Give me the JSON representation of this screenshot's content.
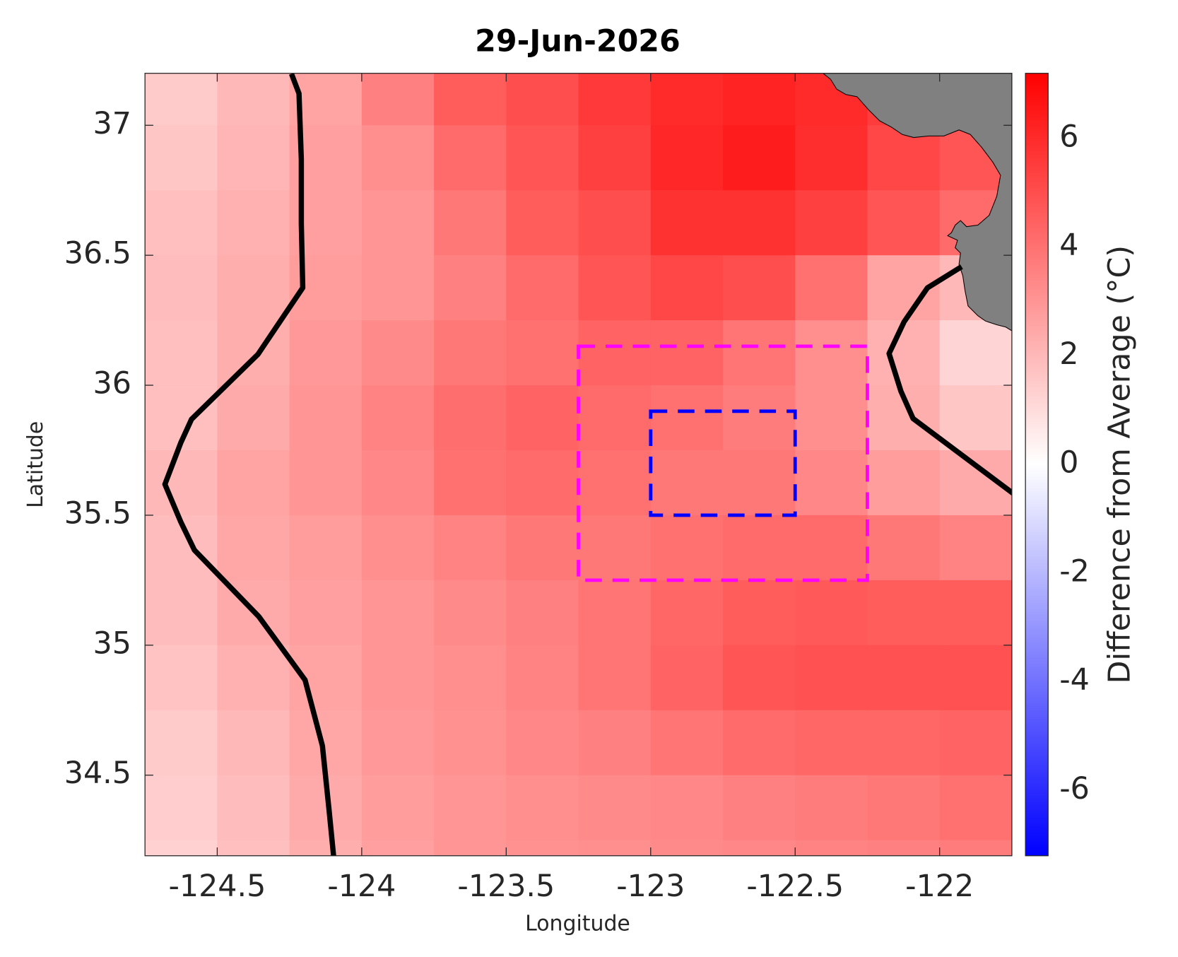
{
  "chart_data": {
    "type": "heatmap",
    "title": "29-Jun-2026",
    "x_label": "Longitude",
    "y_label": "Latitude",
    "xlim": [
      -124.75,
      -121.75
    ],
    "ylim": [
      34.19,
      37.2
    ],
    "xticks": [
      -124.5,
      -124,
      -123.5,
      -123,
      -122.5,
      -122
    ],
    "yticks": [
      34.5,
      35,
      35.5,
      36,
      36.5,
      37
    ],
    "x": [
      -124.625,
      -124.375,
      -124.125,
      -123.875,
      -123.625,
      -123.375,
      -123.125,
      -122.875,
      -122.625,
      -122.375,
      -122.125,
      -121.875
    ],
    "y": [
      37.125,
      36.875,
      36.625,
      36.375,
      36.125,
      35.875,
      35.625,
      35.375,
      35.125,
      34.875,
      34.625,
      34.375,
      34.125
    ],
    "values": [
      [
        1.5,
        2.0,
        2.6,
        3.6,
        4.6,
        5.0,
        5.6,
        6.0,
        6.2,
        6.0,
        5.5,
        5.0
      ],
      [
        1.6,
        2.1,
        2.7,
        3.2,
        4.2,
        4.8,
        5.4,
        6.1,
        6.4,
        5.9,
        5.2,
        4.8
      ],
      [
        1.8,
        2.2,
        2.7,
        3.0,
        3.8,
        4.6,
        5.0,
        5.8,
        5.8,
        5.4,
        4.8,
        4.2
      ],
      [
        1.9,
        2.3,
        2.8,
        3.0,
        3.6,
        4.2,
        4.8,
        5.2,
        5.0,
        4.0,
        2.6,
        2.0
      ],
      [
        1.8,
        2.3,
        2.9,
        3.3,
        3.8,
        4.0,
        4.4,
        4.4,
        3.9,
        3.2,
        2.2,
        1.2
      ],
      [
        1.8,
        2.4,
        3.0,
        3.5,
        4.1,
        4.4,
        4.2,
        4.0,
        3.7,
        3.2,
        2.3,
        1.6
      ],
      [
        2.0,
        2.6,
        3.0,
        3.4,
        4.0,
        4.2,
        4.0,
        3.8,
        3.8,
        3.4,
        2.8,
        2.4
      ],
      [
        1.9,
        2.5,
        2.8,
        3.2,
        3.5,
        3.8,
        3.8,
        4.0,
        4.2,
        4.2,
        3.8,
        3.5
      ],
      [
        1.9,
        2.4,
        2.7,
        3.0,
        3.3,
        3.6,
        3.9,
        4.3,
        4.6,
        4.7,
        4.6,
        4.6
      ],
      [
        1.7,
        2.2,
        2.6,
        3.0,
        3.2,
        3.5,
        3.9,
        4.4,
        4.8,
        4.9,
        4.9,
        4.9
      ],
      [
        1.5,
        2.0,
        2.5,
        2.9,
        3.1,
        3.4,
        3.6,
        3.9,
        4.2,
        4.3,
        4.3,
        4.4
      ],
      [
        1.4,
        1.9,
        2.4,
        2.8,
        3.0,
        3.2,
        3.3,
        3.4,
        3.6,
        3.7,
        3.8,
        4.0
      ],
      [
        1.3,
        1.8,
        2.3,
        2.7,
        3.0,
        3.1,
        3.2,
        3.3,
        3.4,
        3.5,
        3.6,
        3.7
      ]
    ],
    "colormap": [
      "#0000ff",
      "#ffffff",
      "#ff0000"
    ],
    "colorbar": {
      "label": "Difference from Average (°C)",
      "clim": [
        -7.2,
        7.2
      ],
      "ticks": [
        -6,
        -4,
        -2,
        0,
        2,
        4,
        6
      ]
    },
    "contours": [
      {
        "color": "#000000",
        "x": [
          -124.243,
          -124.217,
          -124.209,
          -124.209,
          -124.204,
          -124.359,
          -124.589,
          -124.626,
          -124.681,
          -124.626,
          -124.579,
          -124.356,
          -124.196,
          -124.136,
          -124.113,
          -124.097
        ],
        "y": [
          37.198,
          37.122,
          36.869,
          36.622,
          36.375,
          36.119,
          35.869,
          35.779,
          35.619,
          35.474,
          35.366,
          35.11,
          34.866,
          34.613,
          34.366,
          34.186
        ]
      },
      {
        "color": "#000000",
        "x": [
          -121.924,
          -122.042,
          -122.123,
          -122.175,
          -122.134,
          -122.092,
          -121.746
        ],
        "y": [
          36.456,
          36.375,
          36.244,
          36.122,
          35.977,
          35.872,
          35.584
        ]
      }
    ],
    "regions": [
      {
        "color": "#ff00ff",
        "lon": [
          -123.25,
          -122.25
        ],
        "lat": [
          35.25,
          36.15
        ]
      },
      {
        "color": "#0000ff",
        "lon": [
          -123.0,
          -122.5
        ],
        "lat": [
          35.5,
          35.9
        ]
      }
    ]
  }
}
